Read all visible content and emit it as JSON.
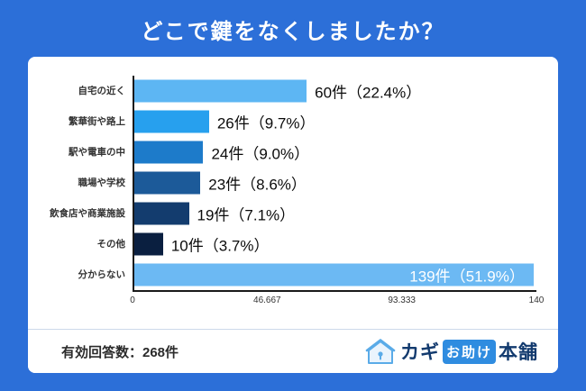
{
  "page": {
    "title": "どこで鍵をなくしましたか？",
    "footer_note": "有効回答数：268件"
  },
  "logo": {
    "kagi": "カギ",
    "otasuke": "お助け",
    "honpo": "本舗"
  },
  "colors": {
    "background": "#2c6fd8",
    "axis": "#1a1a1a",
    "bars": [
      "#5db6f3",
      "#27a0ee",
      "#1d7bca",
      "#1c5a99",
      "#133c6e",
      "#0a1f40",
      "#6cb9f3"
    ]
  },
  "chart_data": {
    "type": "bar",
    "orientation": "horizontal",
    "title": "どこで鍵をなくしましたか？",
    "categories": [
      "自宅の近く",
      "繁華街や路上",
      "駅や電車の中",
      "職場や学校",
      "飲食店や商業施設",
      "その他",
      "分からない"
    ],
    "values": [
      60,
      26,
      24,
      23,
      19,
      10,
      139
    ],
    "value_labels": [
      "60件（22.4%）",
      "26件（9.7%）",
      "24件（9.0%）",
      "23件（8.6%）",
      "19件（7.1%）",
      "10件（3.7%）",
      "139件（51.9%）"
    ],
    "label_inside": [
      false,
      false,
      false,
      false,
      false,
      false,
      true
    ],
    "xlim": [
      0,
      140
    ],
    "x_ticks": [
      "0",
      "46.667",
      "93.333",
      "140"
    ],
    "total_responses": "268件",
    "legend": "none",
    "grid": false
  }
}
